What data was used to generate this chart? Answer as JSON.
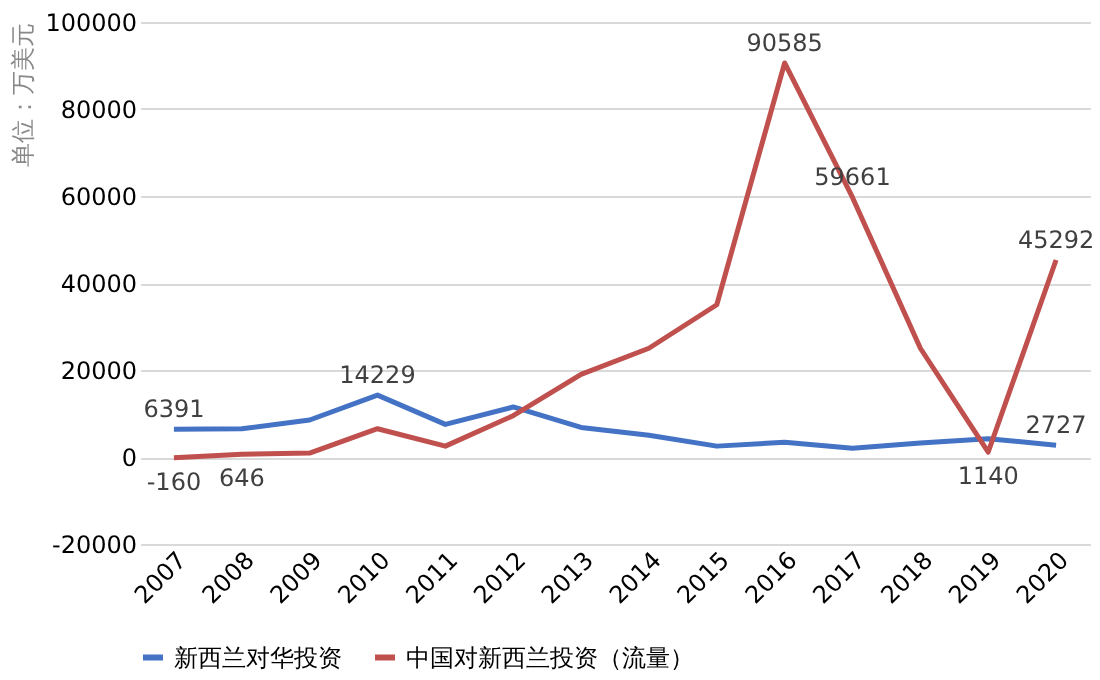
{
  "chart_data": {
    "type": "line",
    "ylabel": "单位：万美元",
    "categories": [
      "2007",
      "2008",
      "2009",
      "2010",
      "2011",
      "2012",
      "2013",
      "2014",
      "2015",
      "2016",
      "2017",
      "2018",
      "2019",
      "2020"
    ],
    "series": [
      {
        "name": "新西兰对华投资",
        "color": "#4472c4",
        "values": [
          6391,
          6500,
          8500,
          14229,
          7500,
          11500,
          6800,
          5000,
          2500,
          3400,
          2000,
          3200,
          4200,
          2727
        ],
        "value_labels": [
          "6391",
          null,
          null,
          "14229",
          null,
          null,
          null,
          null,
          null,
          null,
          null,
          null,
          null,
          "2727"
        ]
      },
      {
        "name": "中国对新西兰投资（流量）",
        "color": "#c0504d",
        "values": [
          -160,
          646,
          900,
          6500,
          2500,
          9500,
          19000,
          25000,
          35000,
          90585,
          59661,
          25000,
          1140,
          45292
        ],
        "value_labels": [
          "-160",
          "646",
          null,
          null,
          null,
          null,
          null,
          null,
          null,
          "90585",
          "59661",
          null,
          "1140",
          "45292"
        ]
      }
    ],
    "ylim": [
      -20000,
      100000
    ],
    "yticks": [
      -20000,
      0,
      20000,
      40000,
      60000,
      80000,
      100000
    ],
    "grid": "y",
    "legend": "bottom",
    "marker": "none",
    "line_style": "solid"
  }
}
